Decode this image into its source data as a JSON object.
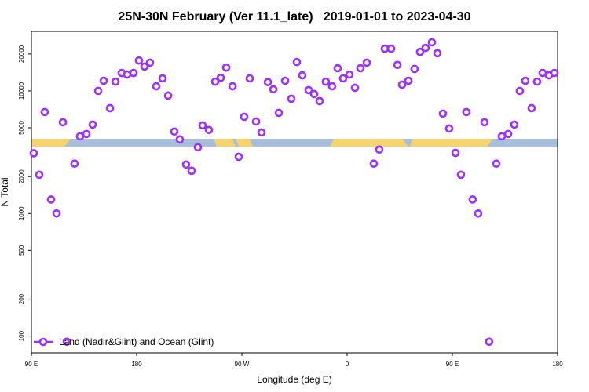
{
  "chart_data": {
    "type": "scatter",
    "title": "25N-30N February (Ver 11.1_late)   2019-01-01 to 2023-04-30",
    "x_label": "Longitude (deg E)",
    "y_label": "N Total",
    "log_y": true,
    "legend": "lower left",
    "xlim": [
      90,
      540
    ],
    "xticks": [
      {
        "value": 90,
        "label": "90 E"
      },
      180,
      {
        "value": 270,
        "label": "90 W"
      },
      {
        "value": 360,
        "label": "0"
      },
      {
        "value": 450,
        "label": "90 E"
      },
      {
        "value": 540,
        "label": "180"
      }
    ],
    "ylim": [
      73,
      30600
    ],
    "yticks": [
      100,
      200,
      500,
      1000,
      2000,
      5000,
      10000,
      20000
    ],
    "series": [
      {
        "name": "Land (Nadir&Glint) and Ocean (Glint)",
        "color": "#9b30ff",
        "x": [
          92,
          96.7,
          101.4,
          106.8,
          111.5,
          116.9,
          120.2,
          126.9,
          131.6,
          137,
          142.4,
          147.1,
          151.8,
          157.2,
          161.9,
          167.2,
          171.9,
          177.3,
          182,
          186.7,
          191.4,
          196.8,
          202.2,
          206.9,
          212.2,
          216.9,
          222.3,
          227,
          232.4,
          236.4,
          241.8,
          247.2,
          251.9,
          256.6,
          262,
          267.3,
          272,
          276.7,
          282.1,
          286.8,
          292.2,
          296.9,
          301.6,
          307,
          312.3,
          317,
          321.7,
          327.1,
          331.8,
          336.5,
          341.8,
          347.2,
          351.9,
          356.6,
          362,
          366.7,
          371.4,
          376.8,
          382.8,
          387.5,
          392.2,
          397.6,
          403,
          407,
          412.4,
          417.7,
          422.4,
          427.1,
          432.5,
          437.2,
          441.9,
          447.3,
          452.7,
          457.4,
          462,
          467.4,
          472.1,
          477.5,
          481.5,
          487.6,
          492.3,
          497.7,
          503,
          507.7,
          512.4,
          517.8,
          522.5,
          527.2,
          532.6,
          537.3
        ],
        "values": [
          3100,
          2070,
          6720,
          1300,
          1000,
          5550,
          90,
          2550,
          4260,
          4450,
          5310,
          10000,
          12100,
          7230,
          11900,
          14000,
          13600,
          14000,
          17700,
          15800,
          17000,
          10900,
          12650,
          9150,
          4660,
          4020,
          2510,
          2230,
          3470,
          5230,
          4800,
          11900,
          12800,
          15500,
          10900,
          2900,
          6150,
          12650,
          5630,
          4580,
          11800,
          10300,
          6620,
          12100,
          8630,
          17200,
          13400,
          10150,
          9430,
          8260,
          11900,
          10900,
          15300,
          12650,
          13600,
          10600,
          15300,
          17000,
          2550,
          3320,
          22100,
          22100,
          16300,
          11250,
          12100,
          15100,
          20800,
          22400,
          24900,
          20300,
          6530,
          4930,
          3120,
          2070,
          6720,
          1300,
          1000,
          5550,
          90,
          2550,
          4260,
          4450,
          5310,
          10000,
          12100,
          7230,
          11900,
          14000,
          13400,
          14000
        ]
      }
    ]
  }
}
